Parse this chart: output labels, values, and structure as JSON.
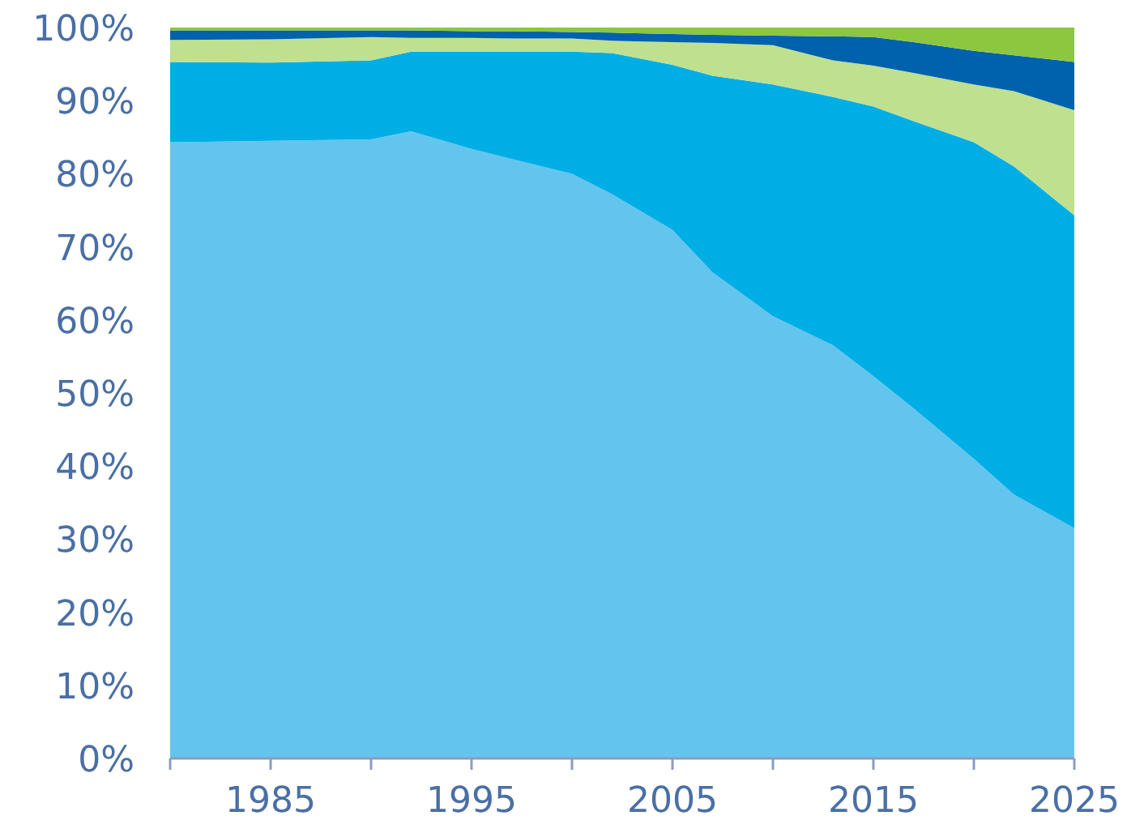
{
  "chart_data": {
    "type": "area",
    "stacked": true,
    "x": [
      1980,
      1985,
      1990,
      1992,
      1995,
      1997,
      2000,
      2002,
      2005,
      2007,
      2010,
      2013,
      2015,
      2017,
      2020,
      2022,
      2025
    ],
    "series": [
      {
        "color": "#63c5ee",
        "values": [
          84.3,
          84.5,
          84.7,
          85.8,
          83.4,
          82,
          80,
          77.2,
          72.3,
          66.5,
          60.5,
          56.5,
          52.3,
          47.9,
          41,
          36.1,
          31.5
        ]
      },
      {
        "color": "#00aee6",
        "values": [
          11.0,
          10.7,
          10.8,
          10.9,
          13.3,
          14.7,
          16.7,
          19.3,
          22.6,
          26.9,
          31.7,
          34.0,
          36.9,
          39.3,
          43.3,
          44.9,
          42.8
        ]
      },
      {
        "color": "#bfe08f",
        "values": [
          3.0,
          3.2,
          3.2,
          1.9,
          1.9,
          1.8,
          1.8,
          1.7,
          3.1,
          4.5,
          5.4,
          5.0,
          5.6,
          6.6,
          7.9,
          10.3,
          14.4
        ]
      },
      {
        "color": "#0061ad",
        "values": [
          1.3,
          1.2,
          0.9,
          1.0,
          0.9,
          1.0,
          0.9,
          1.1,
          1.1,
          1.1,
          1.3,
          3.3,
          3.9,
          4.2,
          4.6,
          4.9,
          6.6
        ]
      },
      {
        "color": "#8dc63f",
        "values": [
          0.4,
          0.4,
          0.4,
          0.4,
          0.5,
          0.5,
          0.6,
          0.7,
          0.9,
          1.0,
          1.1,
          1.2,
          1.3,
          2.0,
          3.2,
          3.8,
          4.7
        ]
      }
    ],
    "xlim": [
      1980,
      2025
    ],
    "xticks": [
      {
        "value": 1980,
        "label": null
      },
      1985,
      {
        "value": 1990,
        "label": null
      },
      1995,
      {
        "value": 2000,
        "label": null
      },
      2005,
      {
        "value": 2010,
        "label": null
      },
      2015,
      {
        "value": 2020,
        "label": null
      },
      2025
    ],
    "ylim": [
      0,
      100
    ],
    "yticks": [
      {
        "value": 0,
        "label": "0%"
      },
      {
        "value": 10,
        "label": "10%"
      },
      {
        "value": 20,
        "label": "20%"
      },
      {
        "value": 30,
        "label": "30%"
      },
      {
        "value": 40,
        "label": "40%"
      },
      {
        "value": 50,
        "label": "50%"
      },
      {
        "value": 60,
        "label": "60%"
      },
      {
        "value": 70,
        "label": "70%"
      },
      {
        "value": 80,
        "label": "80%"
      },
      {
        "value": 90,
        "label": "90%"
      },
      {
        "value": 100,
        "label": "100%"
      }
    ]
  }
}
